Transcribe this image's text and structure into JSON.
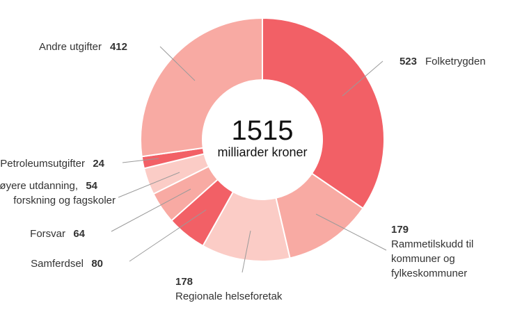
{
  "chart_data": {
    "type": "pie",
    "variant": "donut",
    "center": {
      "total": "1515",
      "unit": "milliarder kroner"
    },
    "slices": [
      {
        "value": 523,
        "label_lines": [
          "Folketrygden"
        ],
        "color": "#f26066"
      },
      {
        "value": 179,
        "label_lines": [
          "Rammetilskudd til",
          "kommuner og",
          "fylkeskommuner"
        ],
        "color": "#f8aaa3"
      },
      {
        "value": 178,
        "label_lines": [
          "Regionale helseforetak"
        ],
        "color": "#fbccc6"
      },
      {
        "value": 80,
        "label_lines": [
          "Samferdsel"
        ],
        "color": "#f26066"
      },
      {
        "value": 64,
        "label_lines": [
          "Forsvar"
        ],
        "color": "#f8aaa3"
      },
      {
        "value": 54,
        "label_lines": [
          "Høyere utdanning,",
          "forskning og fagskoler"
        ],
        "color": "#fbccc6"
      },
      {
        "value": 24,
        "label_lines": [
          "Petroleumsutgifter"
        ],
        "color": "#f26066"
      },
      {
        "value": 412,
        "label_lines": [
          "Andre utgifter"
        ],
        "color": "#f8aaa3"
      }
    ]
  }
}
